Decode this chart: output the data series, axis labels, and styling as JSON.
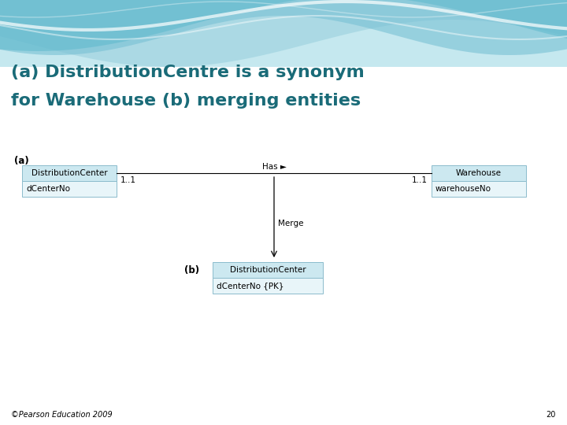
{
  "title_line1": "(a) DistributionCentre is a synonym",
  "title_line2": "for Warehouse (b) merging entities",
  "title_color": "#1a6b78",
  "title_fontsize": 16,
  "bg_color": "#ffffff",
  "header_fill": "#cce8f0",
  "body_fill": "#e8f5f9",
  "box_edge_color": "#8bbccc",
  "label_a": "(a)",
  "label_b": "(b)",
  "left_entity_name": "DistributionCenter",
  "left_entity_attr": "dCenterNo",
  "right_entity_name": "Warehouse",
  "right_entity_attr": "warehouseNo",
  "merged_entity_name": "DistributionCenter",
  "merged_entity_attr": "dCenterNo {PK}",
  "relation_label": "Has ►",
  "left_card": "1..1",
  "right_card": "1..1",
  "merge_label": "Merge",
  "footer_text": "©Pearson Education 2009",
  "page_number": "20",
  "footer_fontsize": 7,
  "wave_light": "#b0dce8",
  "wave_mid": "#7ec8d8",
  "wave_dark": "#5ab0c8"
}
